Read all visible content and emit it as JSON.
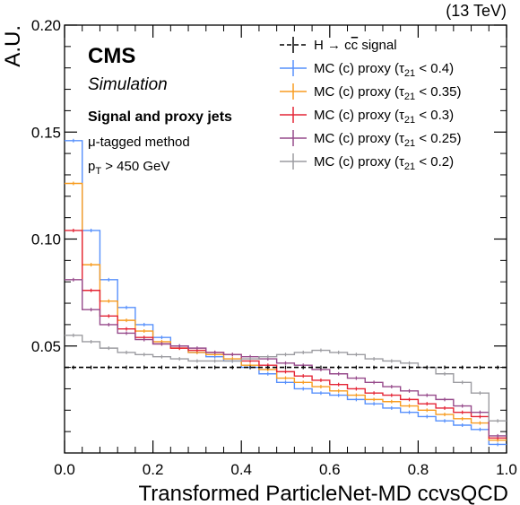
{
  "chart_data": {
    "type": "line",
    "step": true,
    "xlabel": "Transformed ParticleNet-MD ccvsQCD",
    "ylabel": "A.U.",
    "xlim": [
      0.0,
      1.0
    ],
    "ylim": [
      0.0,
      0.2
    ],
    "top_right_label": "(13 TeV)",
    "x_ticks": [
      "0.0",
      "0.2",
      "0.4",
      "0.6",
      "0.8",
      "1.0"
    ],
    "y_ticks": [
      "0.05",
      "0.10",
      "0.15",
      "0.20"
    ],
    "y_tick_values": [
      0.05,
      0.1,
      0.15,
      0.2
    ],
    "x_tick_values": [
      0.0,
      0.2,
      0.4,
      0.6,
      0.8,
      1.0
    ],
    "annotations": {
      "experiment": "CMS",
      "status": "Simulation",
      "heading": "Signal and proxy jets",
      "method": "μ-tagged method",
      "cut_prefix": "p",
      "cut_sub": "T",
      "cut_suffix": " > 450 GeV"
    },
    "legend_position": "top-right",
    "bin_edges": [
      0.0,
      0.04,
      0.08,
      0.12,
      0.16,
      0.2,
      0.24,
      0.28,
      0.32,
      0.36,
      0.4,
      0.44,
      0.48,
      0.52,
      0.56,
      0.6,
      0.64,
      0.68,
      0.72,
      0.76,
      0.8,
      0.84,
      0.88,
      0.92,
      0.96,
      1.0
    ],
    "series": [
      {
        "name_prefix": "H → c",
        "name_bar": "c",
        "name_suffix": " signal",
        "color": "#000000",
        "dashed": true,
        "values": [
          0.04,
          0.04,
          0.04,
          0.04,
          0.04,
          0.04,
          0.04,
          0.04,
          0.04,
          0.04,
          0.04,
          0.04,
          0.04,
          0.04,
          0.04,
          0.04,
          0.04,
          0.04,
          0.04,
          0.04,
          0.04,
          0.04,
          0.04,
          0.04,
          0.04
        ]
      },
      {
        "name_prefix": "MC (c) proxy (τ",
        "name_sub": "21",
        "name_suffix": " < 0.4)",
        "color": "#5790fc",
        "values": [
          0.146,
          0.104,
          0.081,
          0.068,
          0.06,
          0.054,
          0.05,
          0.047,
          0.045,
          0.043,
          0.04,
          0.037,
          0.033,
          0.03,
          0.028,
          0.027,
          0.025,
          0.023,
          0.021,
          0.019,
          0.017,
          0.015,
          0.013,
          0.011,
          0.004
        ]
      },
      {
        "name_prefix": "MC (c) proxy (τ",
        "name_sub": "21",
        "name_suffix": " < 0.35)",
        "color": "#f89c20",
        "values": [
          0.126,
          0.088,
          0.071,
          0.062,
          0.057,
          0.052,
          0.049,
          0.047,
          0.046,
          0.044,
          0.041,
          0.039,
          0.035,
          0.033,
          0.031,
          0.029,
          0.027,
          0.025,
          0.024,
          0.022,
          0.02,
          0.018,
          0.016,
          0.014,
          0.006
        ]
      },
      {
        "name_prefix": "MC (c) proxy (τ",
        "name_sub": "21",
        "name_suffix": " < 0.3)",
        "color": "#e42536",
        "values": [
          0.104,
          0.076,
          0.064,
          0.058,
          0.054,
          0.051,
          0.049,
          0.048,
          0.047,
          0.046,
          0.043,
          0.041,
          0.038,
          0.036,
          0.034,
          0.032,
          0.03,
          0.028,
          0.027,
          0.025,
          0.023,
          0.021,
          0.019,
          0.017,
          0.007
        ]
      },
      {
        "name_prefix": "MC (c) proxy (τ",
        "name_sub": "21",
        "name_suffix": " < 0.25)",
        "color": "#964a8b",
        "values": [
          0.081,
          0.067,
          0.06,
          0.056,
          0.053,
          0.051,
          0.05,
          0.049,
          0.047,
          0.046,
          0.045,
          0.044,
          0.042,
          0.041,
          0.039,
          0.037,
          0.035,
          0.033,
          0.031,
          0.029,
          0.027,
          0.025,
          0.022,
          0.019,
          0.008
        ]
      },
      {
        "name_prefix": "MC (c) proxy (τ",
        "name_sub": "21",
        "name_suffix": " < 0.2)",
        "color": "#9c9ca1",
        "values": [
          0.055,
          0.052,
          0.049,
          0.047,
          0.046,
          0.045,
          0.044,
          0.043,
          0.043,
          0.043,
          0.044,
          0.045,
          0.046,
          0.047,
          0.048,
          0.047,
          0.046,
          0.044,
          0.043,
          0.042,
          0.04,
          0.037,
          0.033,
          0.028,
          0.015
        ]
      }
    ]
  }
}
